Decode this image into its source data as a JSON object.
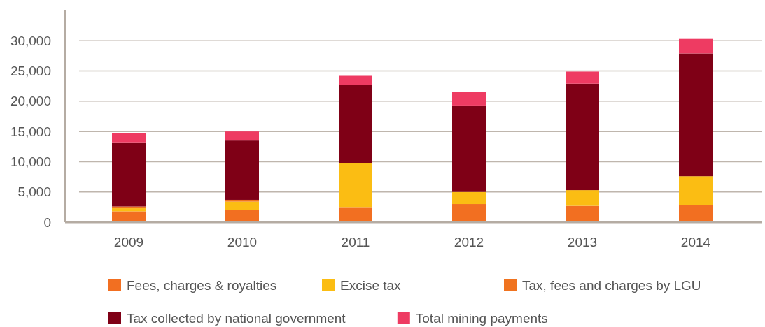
{
  "chart_data": {
    "type": "bar",
    "stacked": true,
    "categories": [
      "2009",
      "2010",
      "2011",
      "2012",
      "2013",
      "2014"
    ],
    "series": [
      {
        "name": "Fees, charges & royalties",
        "color": "#f26f21",
        "values": [
          1800,
          2000,
          2500,
          3000,
          2700,
          2800
        ]
      },
      {
        "name": "Excise tax",
        "color": "#fbbd13",
        "values": [
          500,
          1400,
          7300,
          2000,
          2600,
          4800
        ]
      },
      {
        "name": "Tax, fees and charges by LGU",
        "color": "#f0731f",
        "values": [
          300,
          300,
          null,
          null,
          null,
          null
        ]
      },
      {
        "name": "Tax collected by national government",
        "color": "#7f0016",
        "values": [
          10600,
          9800,
          12900,
          14300,
          17600,
          20300
        ]
      },
      {
        "name": "Total mining payments",
        "color": "#ee3b62",
        "values": [
          1500,
          1500,
          1500,
          2300,
          2000,
          2400
        ]
      }
    ],
    "ylim": [
      0,
      35000
    ],
    "yticks": [
      {
        "value": 0,
        "label": "0"
      },
      {
        "value": 5000,
        "label": "5,000"
      },
      {
        "value": 10000,
        "label": "10,000"
      },
      {
        "value": 15000,
        "label": "15,000"
      },
      {
        "value": 20000,
        "label": "20,000"
      },
      {
        "value": 25000,
        "label": "25,000"
      },
      {
        "value": 30000,
        "label": "30,000"
      }
    ],
    "grid": "y",
    "legend": "bottom"
  }
}
